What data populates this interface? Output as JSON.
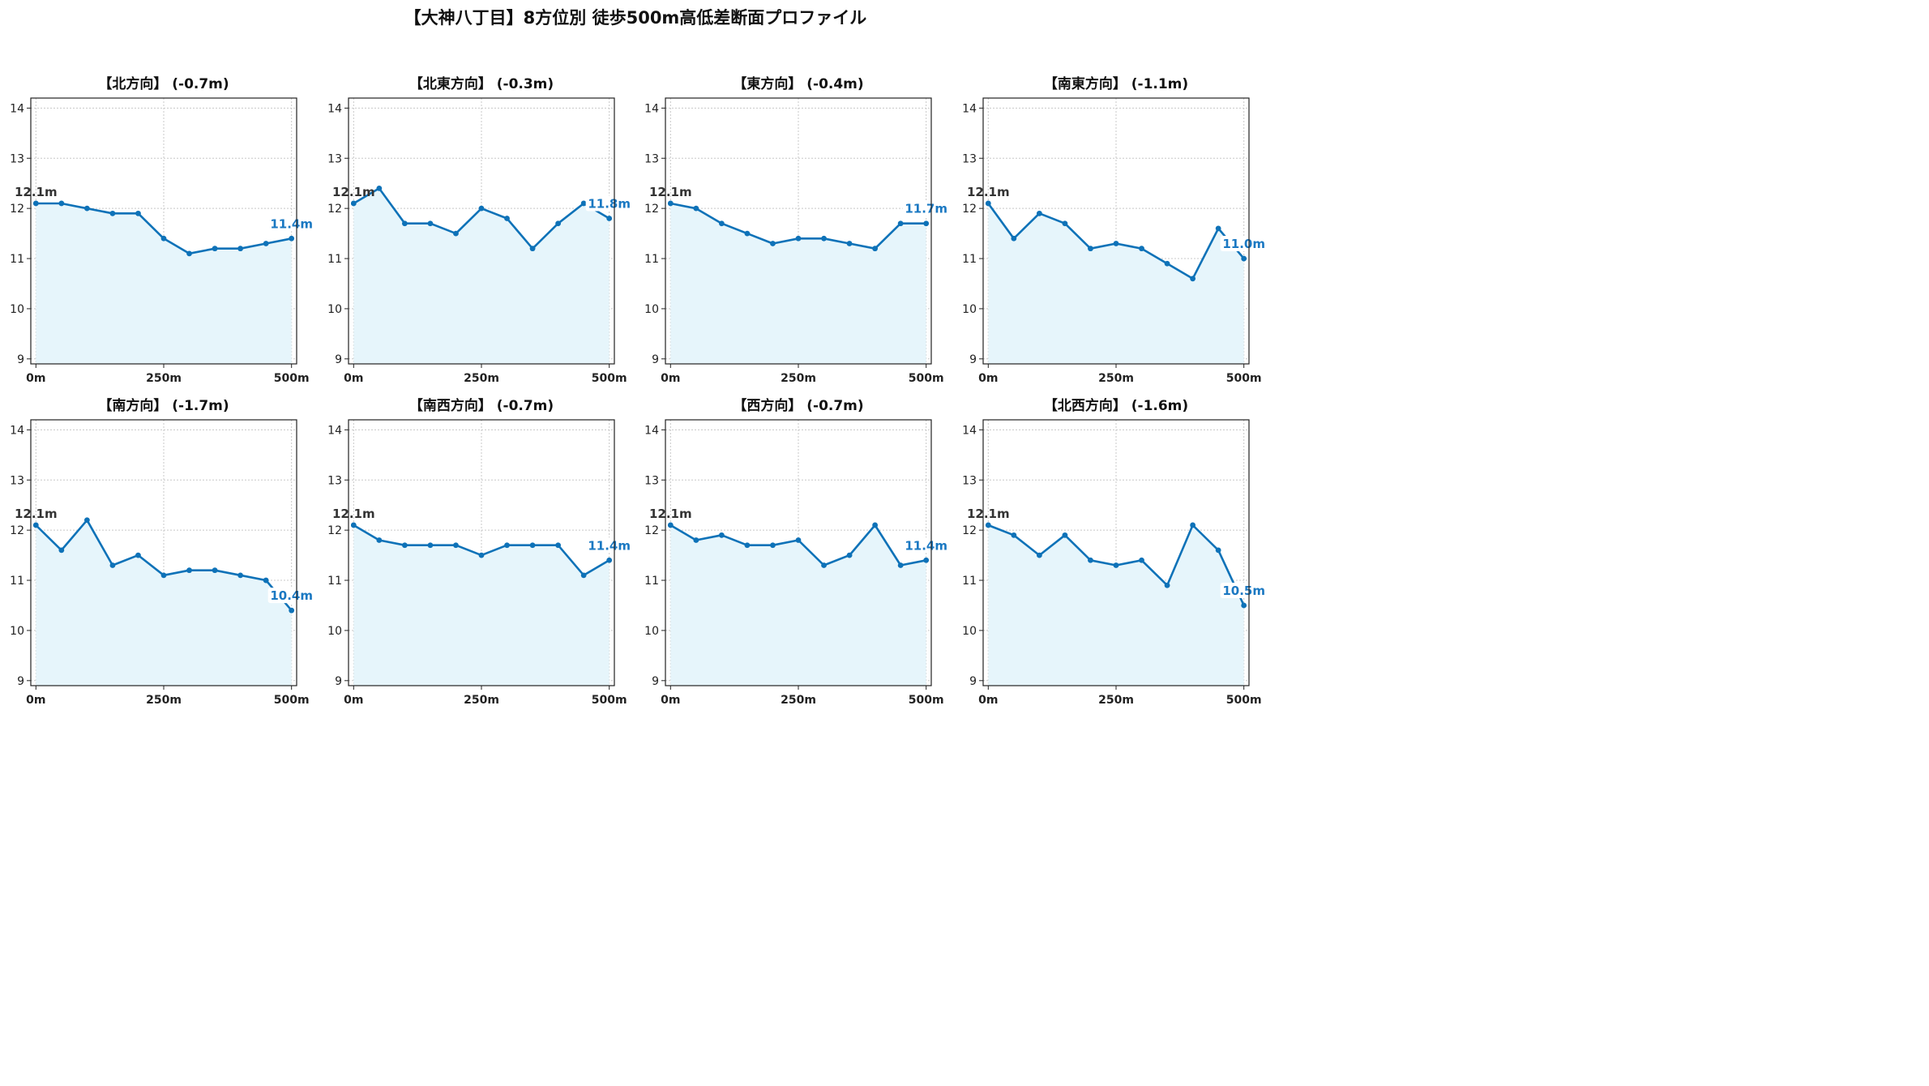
{
  "suptitle": "【大神八丁目】8方位別 徒歩500m高低差断面プロファイル",
  "colors": {
    "line": "#0e72b8",
    "fill": "#e6f5fb",
    "start_label": "#333333",
    "end_label": "#1a78c2",
    "grid": "#c8c8c8"
  },
  "chart_data": [
    {
      "type": "area",
      "title": "【北方向】 (-0.7m)",
      "x": [
        0,
        50,
        100,
        150,
        200,
        250,
        300,
        350,
        400,
        450,
        500
      ],
      "y": [
        12.1,
        12.1,
        12.0,
        11.9,
        11.9,
        11.4,
        11.1,
        11.2,
        11.2,
        11.3,
        11.4
      ],
      "start_label": "12.1m",
      "end_label": "11.4m",
      "xticks": [
        "0m",
        "250m",
        "500m"
      ],
      "yticks": [
        9,
        10,
        11,
        12,
        13,
        14
      ],
      "xlim": [
        -10,
        510
      ],
      "ylim": [
        8.9,
        14.2
      ],
      "grid": true
    },
    {
      "type": "area",
      "title": "【北東方向】 (-0.3m)",
      "x": [
        0,
        50,
        100,
        150,
        200,
        250,
        300,
        350,
        400,
        450,
        500
      ],
      "y": [
        12.1,
        12.4,
        11.7,
        11.7,
        11.5,
        12.0,
        11.8,
        11.2,
        11.7,
        12.1,
        11.8
      ],
      "start_label": "12.1m",
      "end_label": "11.8m",
      "xticks": [
        "0m",
        "250m",
        "500m"
      ],
      "yticks": [
        9,
        10,
        11,
        12,
        13,
        14
      ],
      "xlim": [
        -10,
        510
      ],
      "ylim": [
        8.9,
        14.2
      ],
      "grid": true
    },
    {
      "type": "area",
      "title": "【東方向】 (-0.4m)",
      "x": [
        0,
        50,
        100,
        150,
        200,
        250,
        300,
        350,
        400,
        450,
        500
      ],
      "y": [
        12.1,
        12.0,
        11.7,
        11.5,
        11.3,
        11.4,
        11.4,
        11.3,
        11.2,
        11.7,
        11.7
      ],
      "start_label": "12.1m",
      "end_label": "11.7m",
      "xticks": [
        "0m",
        "250m",
        "500m"
      ],
      "yticks": [
        9,
        10,
        11,
        12,
        13,
        14
      ],
      "xlim": [
        -10,
        510
      ],
      "ylim": [
        8.9,
        14.2
      ],
      "grid": true
    },
    {
      "type": "area",
      "title": "【南東方向】 (-1.1m)",
      "x": [
        0,
        50,
        100,
        150,
        200,
        250,
        300,
        350,
        400,
        450,
        500
      ],
      "y": [
        12.1,
        11.4,
        11.9,
        11.7,
        11.2,
        11.3,
        11.2,
        10.9,
        10.6,
        11.6,
        11.0
      ],
      "start_label": "12.1m",
      "end_label": "11.0m",
      "xticks": [
        "0m",
        "250m",
        "500m"
      ],
      "yticks": [
        9,
        10,
        11,
        12,
        13,
        14
      ],
      "xlim": [
        -10,
        510
      ],
      "ylim": [
        8.9,
        14.2
      ],
      "grid": true
    },
    {
      "type": "area",
      "title": "【南方向】 (-1.7m)",
      "x": [
        0,
        50,
        100,
        150,
        200,
        250,
        300,
        350,
        400,
        450,
        500
      ],
      "y": [
        12.1,
        11.6,
        12.2,
        11.3,
        11.5,
        11.1,
        11.2,
        11.2,
        11.1,
        11.0,
        10.4
      ],
      "start_label": "12.1m",
      "end_label": "10.4m",
      "xticks": [
        "0m",
        "250m",
        "500m"
      ],
      "yticks": [
        9,
        10,
        11,
        12,
        13,
        14
      ],
      "xlim": [
        -10,
        510
      ],
      "ylim": [
        8.9,
        14.2
      ],
      "grid": true
    },
    {
      "type": "area",
      "title": "【南西方向】 (-0.7m)",
      "x": [
        0,
        50,
        100,
        150,
        200,
        250,
        300,
        350,
        400,
        450,
        500
      ],
      "y": [
        12.1,
        11.8,
        11.7,
        11.7,
        11.7,
        11.5,
        11.7,
        11.7,
        11.7,
        11.1,
        11.4
      ],
      "start_label": "12.1m",
      "end_label": "11.4m",
      "xticks": [
        "0m",
        "250m",
        "500m"
      ],
      "yticks": [
        9,
        10,
        11,
        12,
        13,
        14
      ],
      "xlim": [
        -10,
        510
      ],
      "ylim": [
        8.9,
        14.2
      ],
      "grid": true
    },
    {
      "type": "area",
      "title": "【西方向】 (-0.7m)",
      "x": [
        0,
        50,
        100,
        150,
        200,
        250,
        300,
        350,
        400,
        450,
        500
      ],
      "y": [
        12.1,
        11.8,
        11.9,
        11.7,
        11.7,
        11.8,
        11.3,
        11.5,
        12.1,
        11.3,
        11.4
      ],
      "start_label": "12.1m",
      "end_label": "11.4m",
      "xticks": [
        "0m",
        "250m",
        "500m"
      ],
      "yticks": [
        9,
        10,
        11,
        12,
        13,
        14
      ],
      "xlim": [
        -10,
        510
      ],
      "ylim": [
        8.9,
        14.2
      ],
      "grid": true
    },
    {
      "type": "area",
      "title": "【北西方向】 (-1.6m)",
      "x": [
        0,
        50,
        100,
        150,
        200,
        250,
        300,
        350,
        400,
        450,
        500
      ],
      "y": [
        12.1,
        11.9,
        11.5,
        11.9,
        11.4,
        11.3,
        11.4,
        10.9,
        12.1,
        11.6,
        10.5
      ],
      "start_label": "12.1m",
      "end_label": "10.5m",
      "xticks": [
        "0m",
        "250m",
        "500m"
      ],
      "yticks": [
        9,
        10,
        11,
        12,
        13,
        14
      ],
      "xlim": [
        -10,
        510
      ],
      "ylim": [
        8.9,
        14.2
      ],
      "grid": true
    }
  ]
}
